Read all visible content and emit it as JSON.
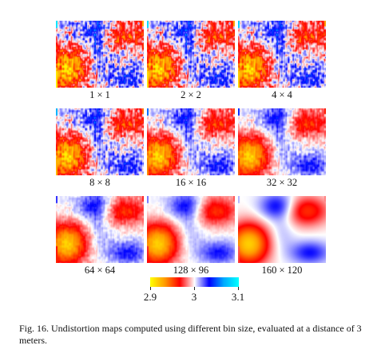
{
  "figure": {
    "panels": [
      {
        "label": "1 × 1",
        "smooth": 0.0
      },
      {
        "label": "2 × 2",
        "smooth": 0.05
      },
      {
        "label": "4 × 4",
        "smooth": 0.12
      },
      {
        "label": "8 × 8",
        "smooth": 0.25
      },
      {
        "label": "16 × 16",
        "smooth": 0.45
      },
      {
        "label": "32 × 32",
        "smooth": 0.62
      },
      {
        "label": "64 × 64",
        "smooth": 0.78
      },
      {
        "label": "128 × 96",
        "smooth": 0.9
      },
      {
        "label": "160 × 120",
        "smooth": 1.0
      }
    ],
    "colorbar": {
      "ticks": [
        "2.9",
        "3",
        "3.1"
      ],
      "colors": [
        "#ffff00",
        "#ff9900",
        "#ff0000",
        "#ffffff",
        "#0000ff",
        "#00aaff",
        "#00ffff"
      ]
    },
    "caption": "Fig. 16.  Undistortion maps computed using different bin size, evaluated at a distance of 3 meters."
  }
}
